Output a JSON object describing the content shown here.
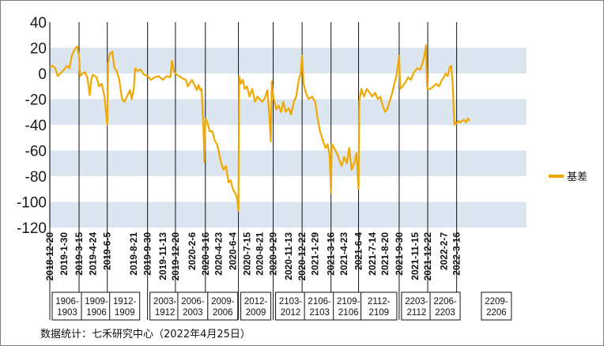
{
  "chart_data": {
    "type": "line",
    "series": [
      {
        "name": "基差",
        "color": "#f0a800",
        "points": [
          [
            "2018-12-20",
            5
          ],
          [
            "2018-12-28",
            6
          ],
          [
            "2019-01-05",
            4
          ],
          [
            "2019-01-12",
            -2
          ],
          [
            "2019-01-20",
            0
          ],
          [
            "2019-01-30",
            3
          ],
          [
            "2019-02-08",
            6
          ],
          [
            "2019-02-15",
            4
          ],
          [
            "2019-02-22",
            14
          ],
          [
            "2019-03-01",
            18
          ],
          [
            "2019-03-05",
            20
          ],
          [
            "2019-03-10",
            21
          ],
          [
            "2019-03-15",
            13
          ],
          [
            "2019-03-18",
            -2
          ],
          [
            "2019-03-25",
            0
          ],
          [
            "2019-04-01",
            1
          ],
          [
            "2019-04-08",
            -3
          ],
          [
            "2019-04-15",
            -17
          ],
          [
            "2019-04-20",
            -4
          ],
          [
            "2019-04-24",
            -1
          ],
          [
            "2019-05-05",
            -3
          ],
          [
            "2019-05-12",
            -10
          ],
          [
            "2019-05-20",
            -8
          ],
          [
            "2019-05-28",
            -18
          ],
          [
            "2019-06-01",
            -30
          ],
          [
            "2019-06-05",
            -40
          ],
          [
            "2019-06-07",
            8
          ],
          [
            "2019-06-12",
            15
          ],
          [
            "2019-06-20",
            17
          ],
          [
            "2019-06-25",
            5
          ],
          [
            "2019-07-02",
            2
          ],
          [
            "2019-07-10",
            -5
          ],
          [
            "2019-07-18",
            -20
          ],
          [
            "2019-07-25",
            -22
          ],
          [
            "2019-08-01",
            -18
          ],
          [
            "2019-08-10",
            -13
          ],
          [
            "2019-08-15",
            -20
          ],
          [
            "2019-08-21",
            -12
          ],
          [
            "2019-08-25",
            4
          ],
          [
            "2019-09-01",
            2
          ],
          [
            "2019-09-10",
            3
          ],
          [
            "2019-09-20",
            -1
          ],
          [
            "2019-09-30",
            -2
          ],
          [
            "2019-10-10",
            -5
          ],
          [
            "2019-10-20",
            -3
          ],
          [
            "2019-11-01",
            -2
          ],
          [
            "2019-11-13",
            -5
          ],
          [
            "2019-11-25",
            -2
          ],
          [
            "2019-12-05",
            -3
          ],
          [
            "2019-12-10",
            10
          ],
          [
            "2019-12-15",
            2
          ],
          [
            "2019-12-20",
            0
          ],
          [
            "2019-12-30",
            -2
          ],
          [
            "2020-01-10",
            -4
          ],
          [
            "2020-01-20",
            -5
          ],
          [
            "2020-01-25",
            -10
          ],
          [
            "2020-02-06",
            -5
          ],
          [
            "2020-02-15",
            -10
          ],
          [
            "2020-02-20",
            -13
          ],
          [
            "2020-02-25",
            -9
          ],
          [
            "2020-03-01",
            -13
          ],
          [
            "2020-03-05",
            -12
          ],
          [
            "2020-03-10",
            -40
          ],
          [
            "2020-03-13",
            -69
          ],
          [
            "2020-03-16",
            -35
          ],
          [
            "2020-03-22",
            -38
          ],
          [
            "2020-03-28",
            -45
          ],
          [
            "2020-04-05",
            -45
          ],
          [
            "2020-04-12",
            -52
          ],
          [
            "2020-04-20",
            -56
          ],
          [
            "2020-04-23",
            -60
          ],
          [
            "2020-05-01",
            -70
          ],
          [
            "2020-05-08",
            -75
          ],
          [
            "2020-05-15",
            -72
          ],
          [
            "2020-05-22",
            -85
          ],
          [
            "2020-05-28",
            -83
          ],
          [
            "2020-06-04",
            -90
          ],
          [
            "2020-06-10",
            -93
          ],
          [
            "2020-06-16",
            -97
          ],
          [
            "2020-06-20",
            -107
          ],
          [
            "2020-06-22",
            -2
          ],
          [
            "2020-06-27",
            -8
          ],
          [
            "2020-07-03",
            -5
          ],
          [
            "2020-07-08",
            -12
          ],
          [
            "2020-07-15",
            -10
          ],
          [
            "2020-07-22",
            -18
          ],
          [
            "2020-07-30",
            -12
          ],
          [
            "2020-08-07",
            -22
          ],
          [
            "2020-08-14",
            -18
          ],
          [
            "2020-08-21",
            -20
          ],
          [
            "2020-08-28",
            -22
          ],
          [
            "2020-09-05",
            -19
          ],
          [
            "2020-09-12",
            -13
          ],
          [
            "2020-09-18",
            -34
          ],
          [
            "2020-09-22",
            -53
          ],
          [
            "2020-09-25",
            -6
          ],
          [
            "2020-09-29",
            -18
          ],
          [
            "2020-10-08",
            -28
          ],
          [
            "2020-10-15",
            -25
          ],
          [
            "2020-10-22",
            -30
          ],
          [
            "2020-10-28",
            -22
          ],
          [
            "2020-11-04",
            -30
          ],
          [
            "2020-11-13",
            -27
          ],
          [
            "2020-11-20",
            -32
          ],
          [
            "2020-11-28",
            -22
          ],
          [
            "2020-12-05",
            -18
          ],
          [
            "2020-12-12",
            -5
          ],
          [
            "2020-12-18",
            0
          ],
          [
            "2020-12-22",
            14
          ],
          [
            "2020-12-26",
            -8
          ],
          [
            "2021-01-02",
            -15
          ],
          [
            "2021-01-10",
            -20
          ],
          [
            "2021-01-20",
            -18
          ],
          [
            "2021-01-29",
            -22
          ],
          [
            "2021-02-05",
            -35
          ],
          [
            "2021-02-12",
            -45
          ],
          [
            "2021-02-20",
            -52
          ],
          [
            "2021-02-28",
            -58
          ],
          [
            "2021-03-06",
            -55
          ],
          [
            "2021-03-12",
            -65
          ],
          [
            "2021-03-16",
            -93
          ],
          [
            "2021-03-18",
            -55
          ],
          [
            "2021-03-25",
            -58
          ],
          [
            "2021-04-02",
            -62
          ],
          [
            "2021-04-10",
            -68
          ],
          [
            "2021-04-16",
            -72
          ],
          [
            "2021-04-23",
            -65
          ],
          [
            "2021-05-01",
            -70
          ],
          [
            "2021-05-08",
            -58
          ],
          [
            "2021-05-15",
            -75
          ],
          [
            "2021-05-22",
            -70
          ],
          [
            "2021-05-29",
            -62
          ],
          [
            "2021-06-04",
            -90
          ],
          [
            "2021-06-06",
            -22
          ],
          [
            "2021-06-12",
            -12
          ],
          [
            "2021-06-20",
            -18
          ],
          [
            "2021-06-28",
            -12
          ],
          [
            "2021-07-06",
            -15
          ],
          [
            "2021-07-14",
            -18
          ],
          [
            "2021-07-22",
            -15
          ],
          [
            "2021-07-30",
            -20
          ],
          [
            "2021-08-06",
            -18
          ],
          [
            "2021-08-13",
            -25
          ],
          [
            "2021-08-20",
            -30
          ],
          [
            "2021-08-26",
            -28
          ],
          [
            "2021-09-02",
            -22
          ],
          [
            "2021-09-10",
            -15
          ],
          [
            "2021-09-16",
            -8
          ],
          [
            "2021-09-22",
            -2
          ],
          [
            "2021-09-30",
            14
          ],
          [
            "2021-10-03",
            -12
          ],
          [
            "2021-10-10",
            -10
          ],
          [
            "2021-10-18",
            -7
          ],
          [
            "2021-10-26",
            -3
          ],
          [
            "2021-11-03",
            -5
          ],
          [
            "2021-11-10",
            0
          ],
          [
            "2021-11-15",
            2
          ],
          [
            "2021-11-22",
            4
          ],
          [
            "2021-11-30",
            3
          ],
          [
            "2021-12-07",
            8
          ],
          [
            "2021-12-13",
            15
          ],
          [
            "2021-12-17",
            22
          ],
          [
            "2021-12-20",
            -10
          ],
          [
            "2021-12-22",
            -12
          ],
          [
            "2021-12-30",
            -12
          ],
          [
            "2022-01-08",
            -10
          ],
          [
            "2022-01-16",
            -8
          ],
          [
            "2022-01-24",
            -10
          ],
          [
            "2022-02-01",
            -5
          ],
          [
            "2022-02-07",
            -3
          ],
          [
            "2022-02-12",
            0
          ],
          [
            "2022-02-18",
            -2
          ],
          [
            "2022-02-24",
            5
          ],
          [
            "2022-02-28",
            6
          ],
          [
            "2022-03-05",
            -10
          ],
          [
            "2022-03-09",
            -40
          ],
          [
            "2022-03-13",
            -38
          ],
          [
            "2022-03-16",
            -39
          ],
          [
            "2022-03-21",
            -37
          ],
          [
            "2022-03-27",
            -38
          ],
          [
            "2022-04-01",
            -37
          ],
          [
            "2022-04-07",
            -36
          ],
          [
            "2022-04-12",
            -38
          ],
          [
            "2022-04-18",
            -35
          ],
          [
            "2022-04-22",
            -37
          ]
        ]
      }
    ],
    "y_ticks": [
      40,
      20,
      0,
      -20,
      -40,
      -60,
      -80,
      -100,
      -120
    ],
    "ylim": [
      -120,
      40
    ],
    "x_tick_labels": [
      "2018-12-20",
      "2019-1-30",
      "2019-3-15",
      "2019-4-24",
      "2019-6-5",
      "2019-8-21",
      "2019-9-30",
      "2019-11-13",
      "2019-12-20",
      "2020-2-6",
      "2020-3-16",
      "2020-4-23",
      "2020-6-4",
      "2020-7-15",
      "2020-8-21",
      "2020-9-29",
      "2020-11-13",
      "2020-12-22",
      "2021-1-29",
      "2021-3-16",
      "2021-4-23",
      "2021-6-4",
      "2021-7-14",
      "2021-8-20",
      "2021-9-30",
      "2021-11-15",
      "2021-12-22",
      "2022-2-7",
      "2022-3-16"
    ],
    "x_range": [
      "2018-12-20",
      "2022-10-05"
    ],
    "contract_periods": [
      {
        "label": "1906-\n1903",
        "start": "2018-12-20",
        "end": "2019-03-15"
      },
      {
        "label": "1909-\n1906",
        "start": "2019-03-15",
        "end": "2019-06-05"
      },
      {
        "label": "1912-\n1909",
        "start": "2019-06-05",
        "end": "2019-08-30"
      },
      {
        "label": "2003-\n1912",
        "start": "2019-09-30",
        "end": "2019-12-20"
      },
      {
        "label": "2006-\n2003",
        "start": "2019-12-20",
        "end": "2020-03-16"
      },
      {
        "label": "2009-\n2006",
        "start": "2020-03-16",
        "end": "2020-06-20"
      },
      {
        "label": "2012-\n2009",
        "start": "2020-06-20",
        "end": "2020-09-29"
      },
      {
        "label": "2103-\n2012",
        "start": "2020-09-29",
        "end": "2020-12-22"
      },
      {
        "label": "2106-\n2103",
        "start": "2020-12-22",
        "end": "2021-03-16"
      },
      {
        "label": "2109-\n2106",
        "start": "2021-03-16",
        "end": "2021-06-04"
      },
      {
        "label": "2112-\n2109",
        "start": "2021-06-04",
        "end": "2021-09-30"
      },
      {
        "label": "2203-\n2112",
        "start": "2021-09-30",
        "end": "2021-12-22"
      },
      {
        "label": "2206-\n2203",
        "start": "2021-12-22",
        "end": "2022-03-16"
      },
      {
        "label": "2209-\n2206",
        "start": "2022-05-20",
        "end": "2022-07-20"
      }
    ],
    "grid": "alternating horizontal bands",
    "band_color": "#dce6f1",
    "legend_position": "right"
  },
  "footer": "数据统计：七禾研究中心（2022年4月25日）"
}
